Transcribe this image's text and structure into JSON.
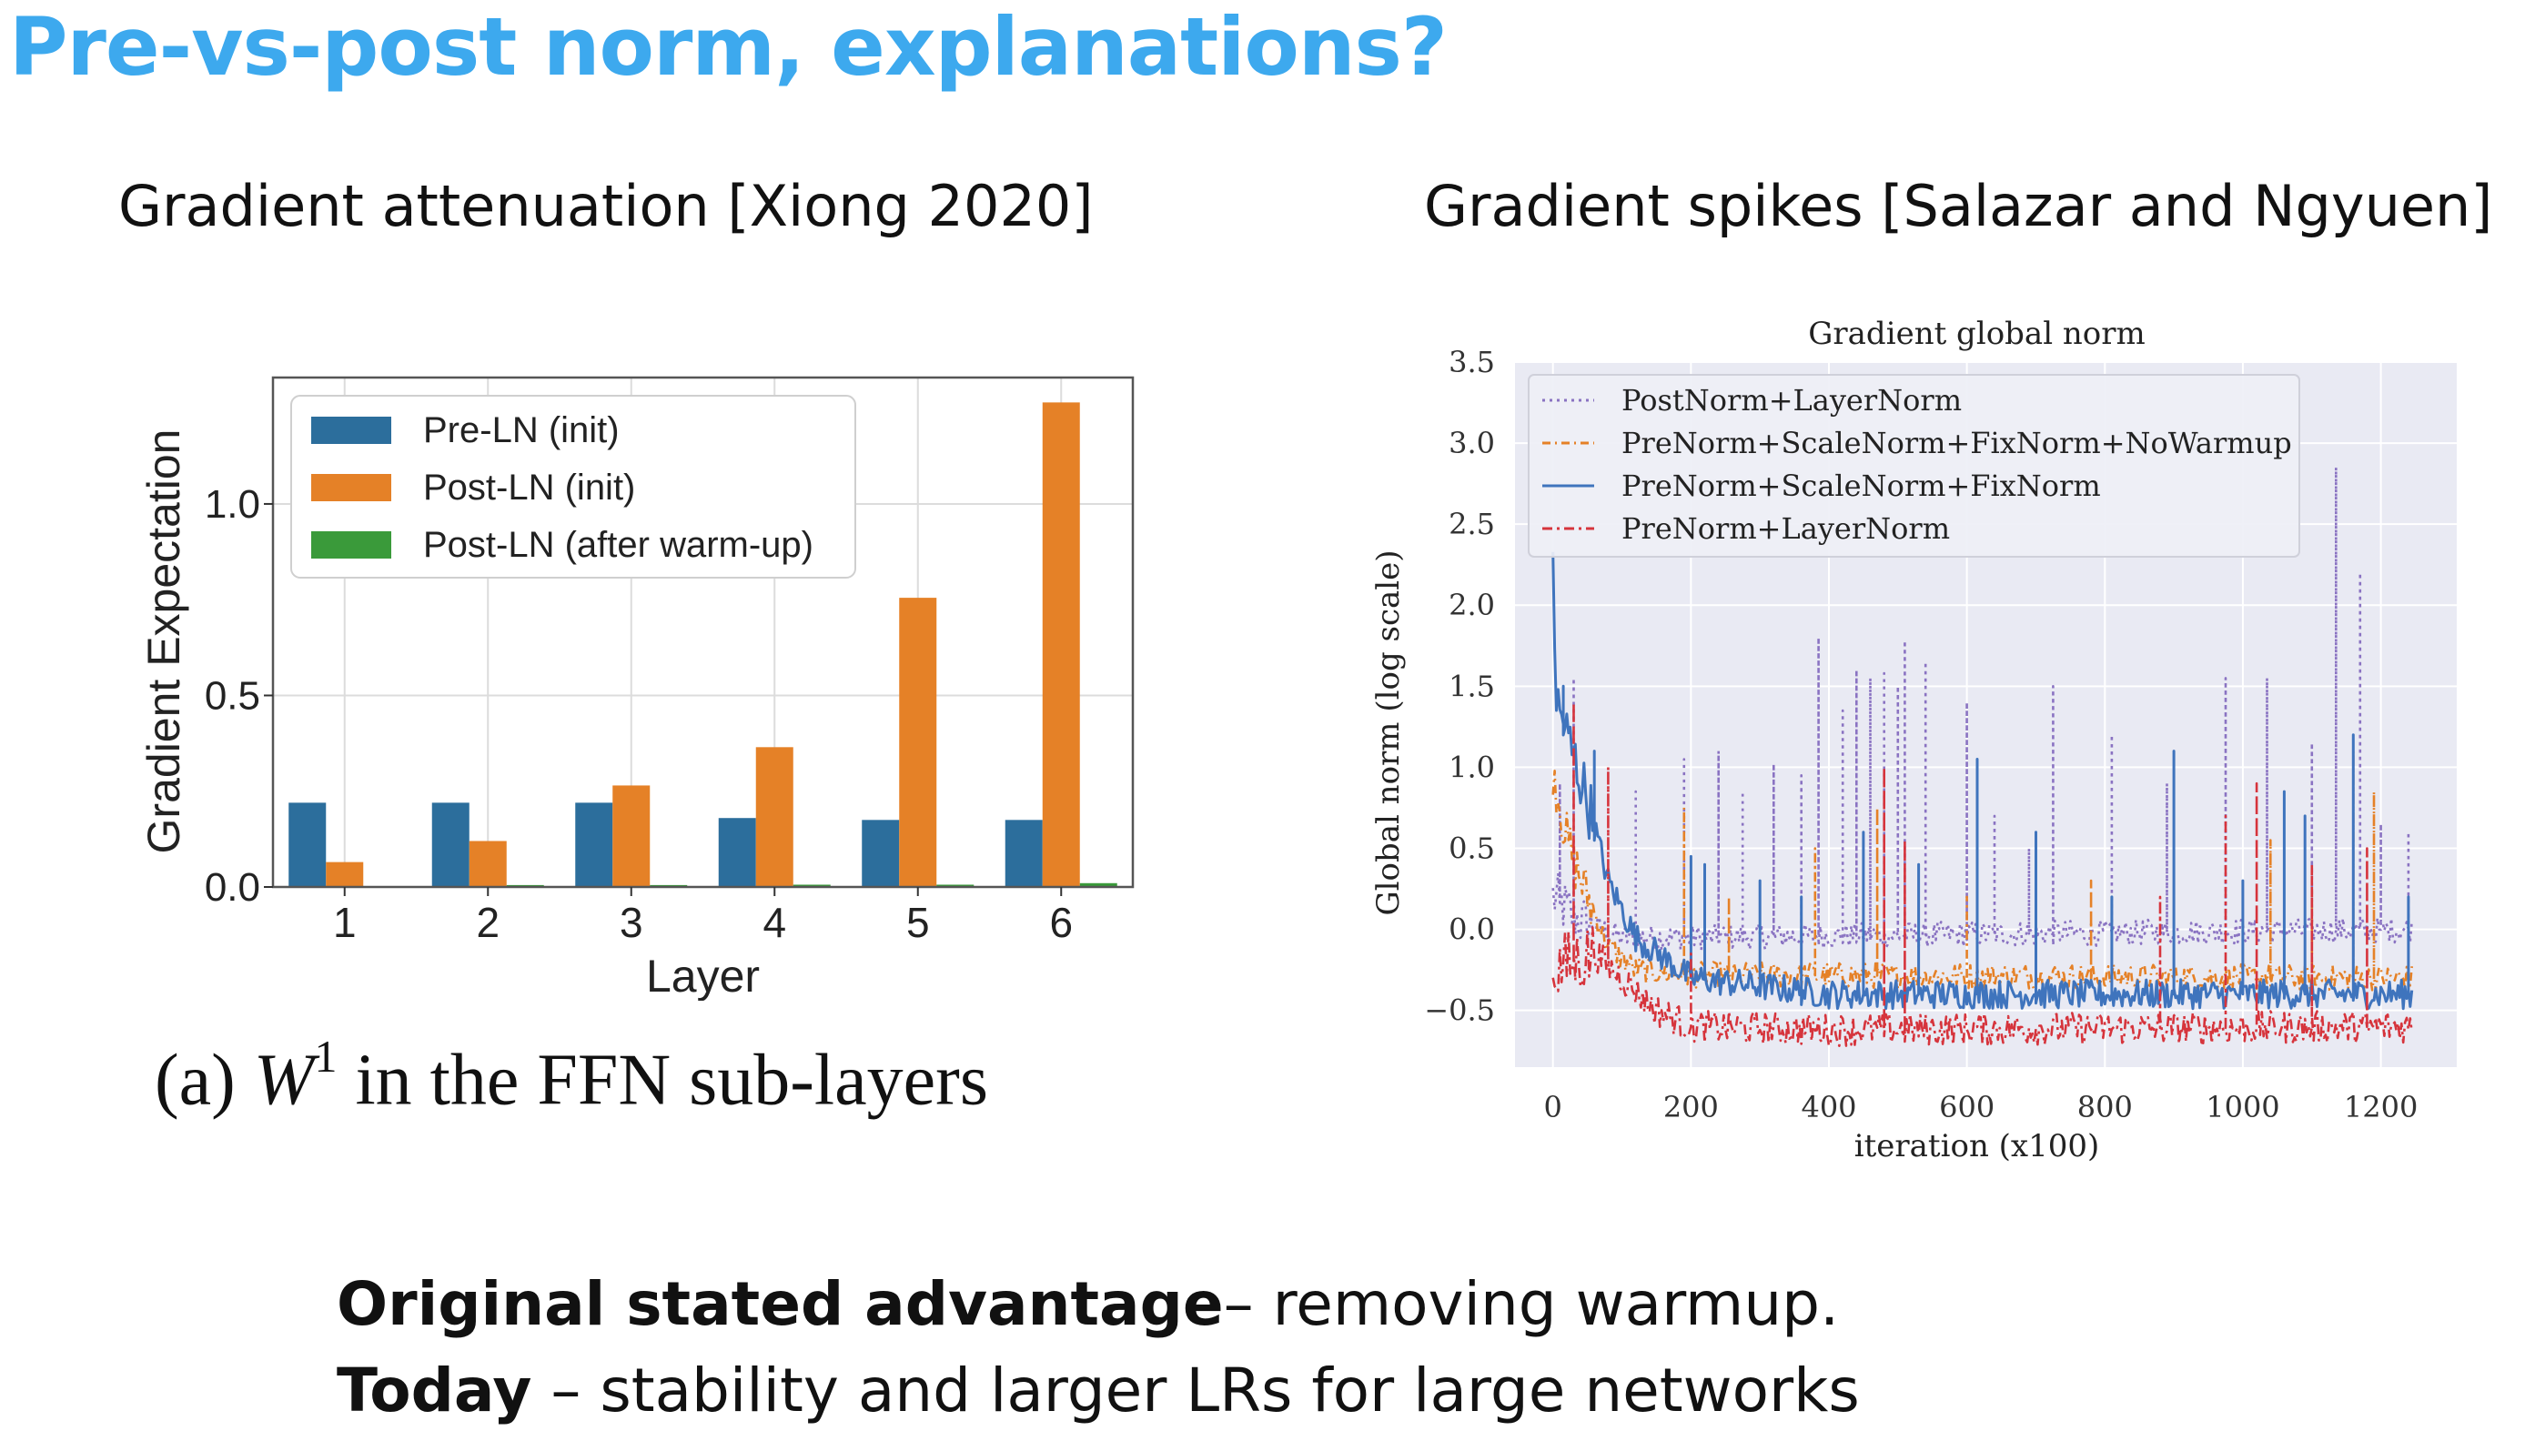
{
  "slide": {
    "title": "Pre-vs-post norm, explanations?",
    "left_title": "Gradient attenuation [Xiong 2020]",
    "right_title": "Gradient spikes [Salazar and Ngyuen]",
    "caption_prefix": "(a)",
    "caption_var": "W",
    "caption_sup": "1",
    "caption_suffix": "in the FFN sub-layers",
    "bottom_1_bold": "Original stated advantage",
    "bottom_1_rest": "– removing warmup.",
    "bottom_2_bold": "Today",
    "bottom_2_rest": " – stability and larger LRs for large networks"
  },
  "chart_data": [
    {
      "type": "bar",
      "title": "",
      "xlabel": "Layer",
      "ylabel": "Gradient Expectation",
      "categories": [
        "1",
        "2",
        "3",
        "4",
        "5",
        "6"
      ],
      "ylim": [
        0,
        1.33
      ],
      "yticks": [
        "0.0",
        "0.5",
        "1.0"
      ],
      "grid": true,
      "legend_position": "top-left",
      "series": [
        {
          "name": "Pre-LN (init)",
          "color": "#2c6e9c",
          "values": [
            0.22,
            0.22,
            0.22,
            0.18,
            0.175,
            0.175
          ]
        },
        {
          "name": "Post-LN (init)",
          "color": "#e58127",
          "values": [
            0.065,
            0.12,
            0.265,
            0.365,
            0.755,
            1.265
          ]
        },
        {
          "name": "Post-LN (after warm-up)",
          "color": "#3a9a3a",
          "values": [
            0.0,
            0.005,
            0.005,
            0.006,
            0.006,
            0.01
          ]
        }
      ]
    },
    {
      "type": "line",
      "title": "Gradient global norm",
      "xlabel": "iteration (x100)",
      "ylabel": "Global norm (log scale)",
      "xlim": [
        -55,
        1310
      ],
      "ylim": [
        -0.85,
        3.5
      ],
      "xticks": [
        "0",
        "200",
        "400",
        "600",
        "800",
        "1000",
        "1200"
      ],
      "yticks": [
        "−0.5",
        "0.0",
        "0.5",
        "1.0",
        "1.5",
        "2.0",
        "2.5",
        "3.0",
        "3.5"
      ],
      "grid": true,
      "legend_position": "top-left",
      "series": [
        {
          "name": "PostNorm+LayerNorm",
          "color": "#8a73c2",
          "dash": "3,5",
          "baseline": [
            [
              0,
              0.2
            ],
            [
              40,
              0.05
            ],
            [
              100,
              -0.05
            ],
            [
              200,
              -0.05
            ],
            [
              1250,
              0.0
            ]
          ],
          "spikes": [
            [
              10,
              0.9
            ],
            [
              30,
              1.55
            ],
            [
              120,
              0.85
            ],
            [
              190,
              1.05
            ],
            [
              240,
              1.1
            ],
            [
              275,
              0.85
            ],
            [
              320,
              1.02
            ],
            [
              360,
              0.95
            ],
            [
              385,
              1.8
            ],
            [
              420,
              1.35
            ],
            [
              440,
              1.6
            ],
            [
              460,
              1.55
            ],
            [
              480,
              1.58
            ],
            [
              500,
              1.5
            ],
            [
              510,
              1.78
            ],
            [
              540,
              1.65
            ],
            [
              600,
              1.4
            ],
            [
              640,
              0.7
            ],
            [
              690,
              0.5
            ],
            [
              725,
              1.5
            ],
            [
              810,
              1.2
            ],
            [
              890,
              0.9
            ],
            [
              975,
              1.55
            ],
            [
              1035,
              1.55
            ],
            [
              1100,
              1.15
            ],
            [
              1135,
              2.85
            ],
            [
              1170,
              2.2
            ],
            [
              1200,
              0.65
            ],
            [
              1240,
              0.6
            ]
          ]
        },
        {
          "name": "PreNorm+ScaleNorm+FixNorm+NoWarmup",
          "color": "#e58127",
          "dash": "9,5,2,5",
          "baseline": [
            [
              0,
              1.0
            ],
            [
              20,
              0.55
            ],
            [
              50,
              0.2
            ],
            [
              80,
              -0.1
            ],
            [
              120,
              -0.25
            ],
            [
              200,
              -0.28
            ],
            [
              1250,
              -0.3
            ]
          ],
          "spikes": [
            [
              190,
              0.75
            ],
            [
              255,
              0.2
            ],
            [
              380,
              0.5
            ],
            [
              470,
              0.75
            ],
            [
              600,
              0.2
            ],
            [
              780,
              0.3
            ],
            [
              1040,
              0.55
            ],
            [
              1100,
              0.25
            ],
            [
              1160,
              1.1
            ],
            [
              1190,
              0.85
            ]
          ]
        },
        {
          "name": "PreNorm+ScaleNorm+FixNorm",
          "color": "#3f74bd",
          "dash": "",
          "baseline": [
            [
              0,
              2.3
            ],
            [
              5,
              1.4
            ],
            [
              20,
              1.2
            ],
            [
              50,
              0.8
            ],
            [
              80,
              0.3
            ],
            [
              120,
              -0.05
            ],
            [
              200,
              -0.3
            ],
            [
              400,
              -0.4
            ],
            [
              1250,
              -0.4
            ]
          ],
          "spikes": [
            [
              15,
              1.5
            ],
            [
              60,
              1.1
            ],
            [
              200,
              0.45
            ],
            [
              220,
              0.4
            ],
            [
              300,
              0.3
            ],
            [
              360,
              0.2
            ],
            [
              450,
              0.6
            ],
            [
              530,
              0.4
            ],
            [
              615,
              1.05
            ],
            [
              700,
              0.6
            ],
            [
              810,
              0.2
            ],
            [
              900,
              1.1
            ],
            [
              1000,
              0.3
            ],
            [
              1060,
              0.85
            ],
            [
              1090,
              0.7
            ],
            [
              1160,
              1.2
            ],
            [
              1240,
              0.2
            ]
          ]
        },
        {
          "name": "PreNorm+LayerNorm",
          "color": "#d6343c",
          "dash": "11,5,3,5",
          "baseline": [
            [
              0,
              -0.25
            ],
            [
              30,
              -0.2
            ],
            [
              60,
              -0.15
            ],
            [
              100,
              -0.3
            ],
            [
              150,
              -0.5
            ],
            [
              200,
              -0.6
            ],
            [
              400,
              -0.62
            ],
            [
              1250,
              -0.6
            ]
          ],
          "spikes": [
            [
              30,
              1.4
            ],
            [
              80,
              1.0
            ],
            [
              200,
              -0.15
            ],
            [
              480,
              1.0
            ],
            [
              510,
              0.55
            ],
            [
              880,
              0.2
            ],
            [
              975,
              0.7
            ],
            [
              1020,
              0.9
            ],
            [
              1100,
              0.4
            ],
            [
              1180,
              0.5
            ]
          ]
        }
      ]
    }
  ]
}
